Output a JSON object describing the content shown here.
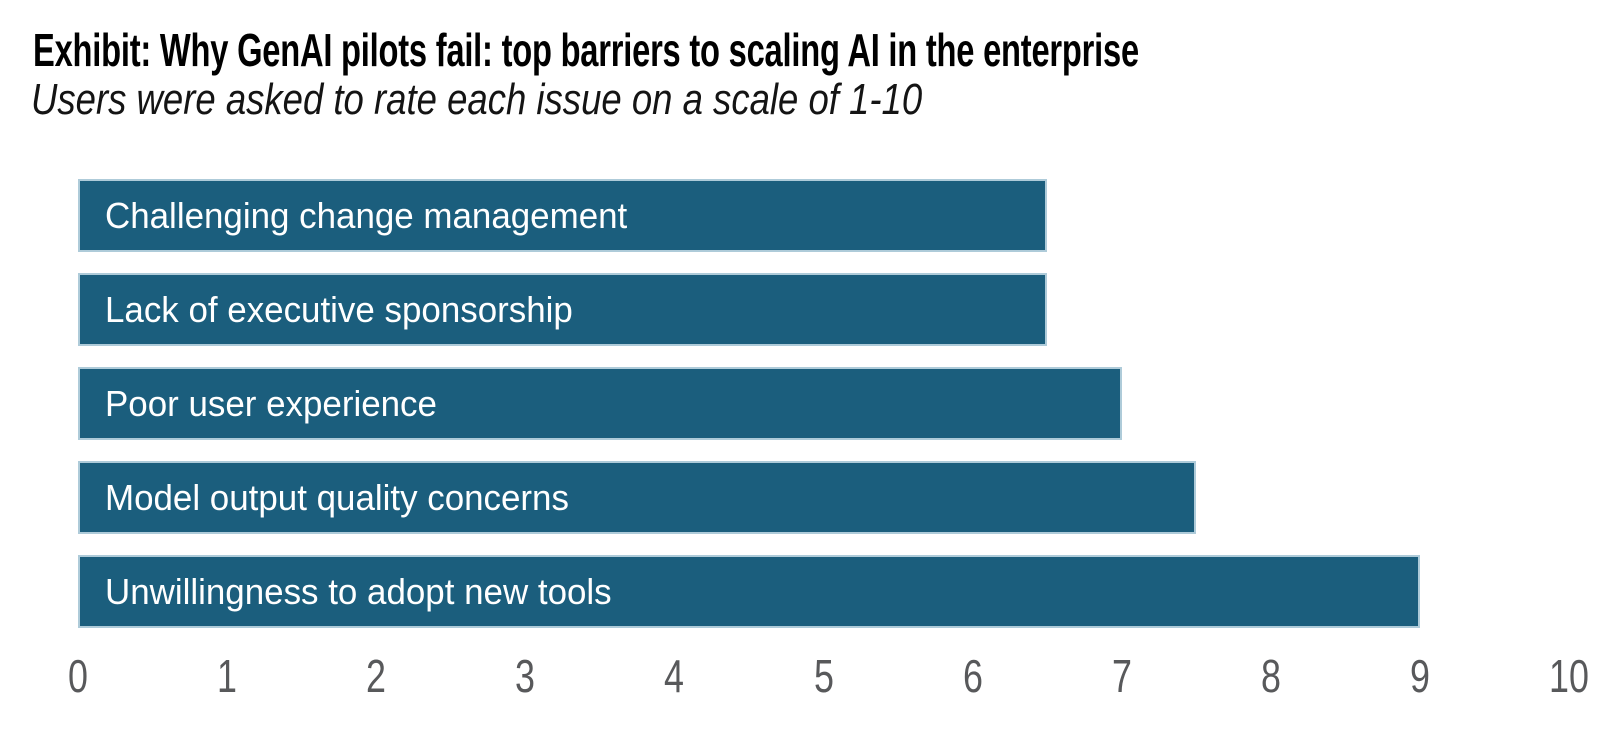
{
  "header": {
    "title": "Exhibit: Why GenAI pilots fail: top barriers to scaling AI in the enterprise",
    "subtitle": "Users were asked to rate each issue on a scale of 1-10"
  },
  "chart_data": {
    "type": "bar",
    "orientation": "horizontal",
    "title": "Exhibit: Why GenAI pilots fail: top barriers to scaling AI in the enterprise",
    "subtitle": "Users were asked to rate each issue on a scale of 1-10",
    "categories": [
      "Challenging change management",
      "Lack of executive sponsorship",
      "Poor user experience",
      "Model output quality concerns",
      "Unwillingness to adopt new tools"
    ],
    "values": [
      6.5,
      6.5,
      7,
      7.5,
      9
    ],
    "label_position": "inside-left",
    "xlabel": "",
    "ylabel": "",
    "xlim": [
      0,
      10
    ],
    "xticks": [
      0,
      1,
      2,
      3,
      4,
      5,
      6,
      7,
      8,
      9,
      10
    ],
    "grid": false,
    "legend": false,
    "colors": {
      "bar_fill": "#1B5E7D",
      "bar_edge": "#AECBD9",
      "bar_label_text": "#FFFFFF",
      "tick_text": "#58595B",
      "title_text": "#000000",
      "subtitle_text": "#141414",
      "background": "#FFFFFF"
    }
  }
}
